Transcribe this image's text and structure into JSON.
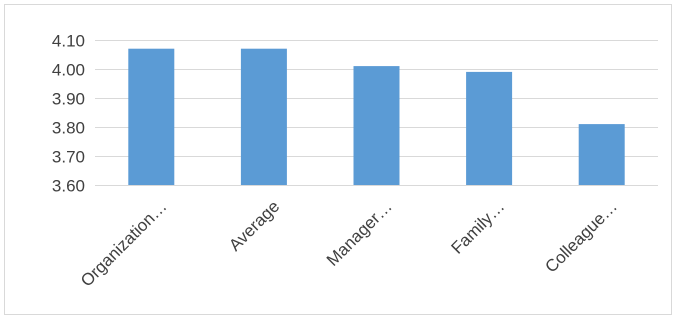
{
  "chart_data": {
    "type": "bar",
    "title": "",
    "xlabel": "",
    "ylabel": "",
    "categories": [
      "Organization…",
      "Average",
      "Manager…",
      "Family…",
      "Colleague…"
    ],
    "values": [
      4.07,
      4.07,
      4.01,
      3.99,
      3.81
    ],
    "ylim": [
      3.6,
      4.1
    ],
    "yticks": [
      "3.60",
      "3.70",
      "3.80",
      "3.90",
      "4.00",
      "4.10"
    ],
    "ytick_values": [
      3.6,
      3.7,
      3.8,
      3.9,
      4.0,
      4.1
    ],
    "grid": true,
    "legend": "none",
    "bar_color": "#5b9bd5",
    "grid_color": "#d9d9d9",
    "axis_color": "#d9d9d9",
    "label_color": "#404040"
  }
}
